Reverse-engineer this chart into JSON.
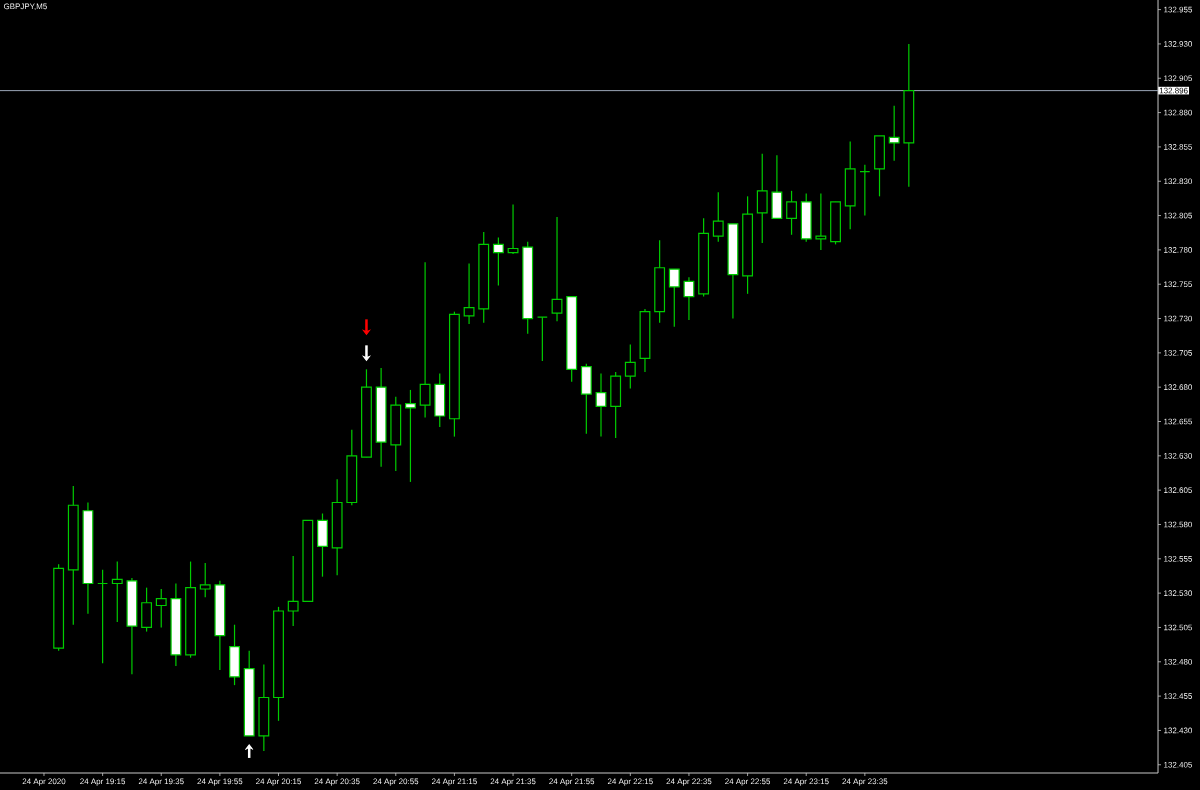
{
  "chart_data": {
    "type": "candlestick",
    "title": "GBPJPY,M5",
    "color": "#00cc00",
    "x": [
      "2020-04-24T19:00",
      "2020-04-24T19:05",
      "2020-04-24T19:10",
      "2020-04-24T19:15",
      "2020-04-24T19:20",
      "2020-04-24T19:25",
      "2020-04-24T19:30",
      "2020-04-24T19:35",
      "2020-04-24T19:40",
      "2020-04-24T19:45",
      "2020-04-24T19:50",
      "2020-04-24T19:55",
      "2020-04-24T20:00",
      "2020-04-24T20:05",
      "2020-04-24T20:10",
      "2020-04-24T20:15",
      "2020-04-24T20:20",
      "2020-04-24T20:25",
      "2020-04-24T20:30",
      "2020-04-24T20:35",
      "2020-04-24T20:40",
      "2020-04-24T20:45",
      "2020-04-24T20:50",
      "2020-04-24T20:55",
      "2020-04-24T21:00",
      "2020-04-24T21:05",
      "2020-04-24T21:10",
      "2020-04-24T21:15",
      "2020-04-24T21:20",
      "2020-04-24T21:25",
      "2020-04-24T21:30",
      "2020-04-24T21:35",
      "2020-04-24T21:40",
      "2020-04-24T21:45",
      "2020-04-24T21:50",
      "2020-04-24T21:55",
      "2020-04-24T22:00",
      "2020-04-24T22:05",
      "2020-04-24T22:10",
      "2020-04-24T22:15",
      "2020-04-24T22:20",
      "2020-04-24T22:25",
      "2020-04-24T22:30",
      "2020-04-24T22:35",
      "2020-04-24T22:40",
      "2020-04-24T22:45",
      "2020-04-24T22:50",
      "2020-04-24T22:55",
      "2020-04-24T23:00",
      "2020-04-24T23:05",
      "2020-04-24T23:10",
      "2020-04-24T23:15",
      "2020-04-24T23:20",
      "2020-04-24T23:25",
      "2020-04-24T23:30",
      "2020-04-24T23:35",
      "2020-04-24T23:40",
      "2020-04-24T23:45",
      "2020-04-24T23:50"
    ],
    "ohlc": [
      [
        132.49,
        132.551,
        132.488,
        132.548
      ],
      [
        132.547,
        132.608,
        132.507,
        132.594
      ],
      [
        132.59,
        132.596,
        132.515,
        132.537
      ],
      [
        132.537,
        132.547,
        132.479,
        132.537
      ],
      [
        132.537,
        132.553,
        132.509,
        132.54
      ],
      [
        132.539,
        132.541,
        132.471,
        132.506
      ],
      [
        132.505,
        132.534,
        132.502,
        132.523
      ],
      [
        132.521,
        132.533,
        132.505,
        132.526
      ],
      [
        132.526,
        132.537,
        132.477,
        132.485
      ],
      [
        132.485,
        132.553,
        132.483,
        132.534
      ],
      [
        132.533,
        132.552,
        132.527,
        132.536
      ],
      [
        132.536,
        132.539,
        132.474,
        132.499
      ],
      [
        132.491,
        132.507,
        132.463,
        132.469
      ],
      [
        132.475,
        132.488,
        132.426,
        132.426
      ],
      [
        132.426,
        132.478,
        132.415,
        132.454
      ],
      [
        132.454,
        132.52,
        132.437,
        132.517
      ],
      [
        132.517,
        132.557,
        132.506,
        132.524
      ],
      [
        132.524,
        132.583,
        132.524,
        132.583
      ],
      [
        132.583,
        132.588,
        132.542,
        132.564
      ],
      [
        132.563,
        132.613,
        132.543,
        132.596
      ],
      [
        132.596,
        132.649,
        132.594,
        132.63
      ],
      [
        132.629,
        132.693,
        132.629,
        132.68
      ],
      [
        132.68,
        132.694,
        132.622,
        132.64
      ],
      [
        132.638,
        132.673,
        132.619,
        132.667
      ],
      [
        132.668,
        132.678,
        132.611,
        132.665
      ],
      [
        132.667,
        132.771,
        132.658,
        132.682
      ],
      [
        132.682,
        132.69,
        132.651,
        132.659
      ],
      [
        132.657,
        132.735,
        132.644,
        132.733
      ],
      [
        132.732,
        132.77,
        132.726,
        132.738
      ],
      [
        132.737,
        132.793,
        132.727,
        132.784
      ],
      [
        132.784,
        132.789,
        132.754,
        132.778
      ],
      [
        132.778,
        132.813,
        132.777,
        132.781
      ],
      [
        132.782,
        132.786,
        132.719,
        132.73
      ],
      [
        132.731,
        132.731,
        132.699,
        132.731
      ],
      [
        132.734,
        132.804,
        132.728,
        132.744
      ],
      [
        132.746,
        132.746,
        132.684,
        132.693
      ],
      [
        132.695,
        132.697,
        132.646,
        132.675
      ],
      [
        132.676,
        132.69,
        132.644,
        132.666
      ],
      [
        132.666,
        132.691,
        132.643,
        132.688
      ],
      [
        132.688,
        132.711,
        132.679,
        132.698
      ],
      [
        132.701,
        132.737,
        132.691,
        132.735
      ],
      [
        132.735,
        132.787,
        132.727,
        132.767
      ],
      [
        132.766,
        132.766,
        132.724,
        132.753
      ],
      [
        132.757,
        132.76,
        132.729,
        132.746
      ],
      [
        132.748,
        132.803,
        132.746,
        132.792
      ],
      [
        132.79,
        132.822,
        132.786,
        132.801
      ],
      [
        132.799,
        132.799,
        132.73,
        132.762
      ],
      [
        132.761,
        132.819,
        132.748,
        132.806
      ],
      [
        132.807,
        132.85,
        132.785,
        132.823
      ],
      [
        132.822,
        132.849,
        132.803,
        132.803
      ],
      [
        132.803,
        132.823,
        132.791,
        132.815
      ],
      [
        132.815,
        132.821,
        132.786,
        132.788
      ],
      [
        132.788,
        132.821,
        132.78,
        132.79
      ],
      [
        132.786,
        132.815,
        132.784,
        132.815
      ],
      [
        132.812,
        132.859,
        132.795,
        132.839
      ],
      [
        132.837,
        132.842,
        132.805,
        132.837
      ],
      [
        132.839,
        132.863,
        132.819,
        132.863
      ],
      [
        132.862,
        132.885,
        132.845,
        132.858
      ],
      [
        132.858,
        132.93,
        132.826,
        132.896
      ]
    ],
    "xlim": [
      "2020-04-24T18:40",
      "2020-04-25T01:15"
    ],
    "xticks": [
      {
        "value": "2020-04-24T18:55",
        "label": "24 Apr 2020"
      },
      {
        "value": "2020-04-24T19:15",
        "label": "24 Apr 19:15"
      },
      {
        "value": "2020-04-24T19:35",
        "label": "24 Apr 19:35"
      },
      {
        "value": "2020-04-24T19:55",
        "label": "24 Apr 19:55"
      },
      {
        "value": "2020-04-24T20:15",
        "label": "24 Apr 20:15"
      },
      {
        "value": "2020-04-24T20:35",
        "label": "24 Apr 20:35"
      },
      {
        "value": "2020-04-24T20:55",
        "label": "24 Apr 20:55"
      },
      {
        "value": "2020-04-24T21:15",
        "label": "24 Apr 21:15"
      },
      {
        "value": "2020-04-24T21:35",
        "label": "24 Apr 21:35"
      },
      {
        "value": "2020-04-24T21:55",
        "label": "24 Apr 21:55"
      },
      {
        "value": "2020-04-24T22:15",
        "label": "24 Apr 22:15"
      },
      {
        "value": "2020-04-24T22:35",
        "label": "24 Apr 22:35"
      },
      {
        "value": "2020-04-24T22:55",
        "label": "24 Apr 22:55"
      },
      {
        "value": "2020-04-24T23:15",
        "label": "24 Apr 23:15"
      },
      {
        "value": "2020-04-24T23:35",
        "label": "24 Apr 23:35"
      }
    ],
    "ylim": [
      132.399,
      132.962
    ],
    "yticks": [
      132.955,
      {
        "value": 132.93,
        "label": "132.930"
      },
      132.905,
      {
        "value": 132.88,
        "label": "132.880"
      },
      132.855,
      {
        "value": 132.83,
        "label": "132.830"
      },
      132.805,
      {
        "value": 132.78,
        "label": "132.780"
      },
      132.755,
      {
        "value": 132.73,
        "label": "132.730"
      },
      132.705,
      {
        "value": 132.68,
        "label": "132.680"
      },
      132.655,
      {
        "value": 132.63,
        "label": "132.630"
      },
      132.605,
      {
        "value": 132.58,
        "label": "132.580"
      },
      132.555,
      {
        "value": 132.53,
        "label": "132.530"
      },
      132.505,
      {
        "value": 132.48,
        "label": "132.480"
      },
      132.455,
      {
        "value": 132.43,
        "label": "132.430"
      },
      132.405
    ],
    "ref_lines": [
      {
        "axis": "y",
        "value": 132.896,
        "label": "132.896",
        "color": "#9aa6b6"
      }
    ]
  }
}
